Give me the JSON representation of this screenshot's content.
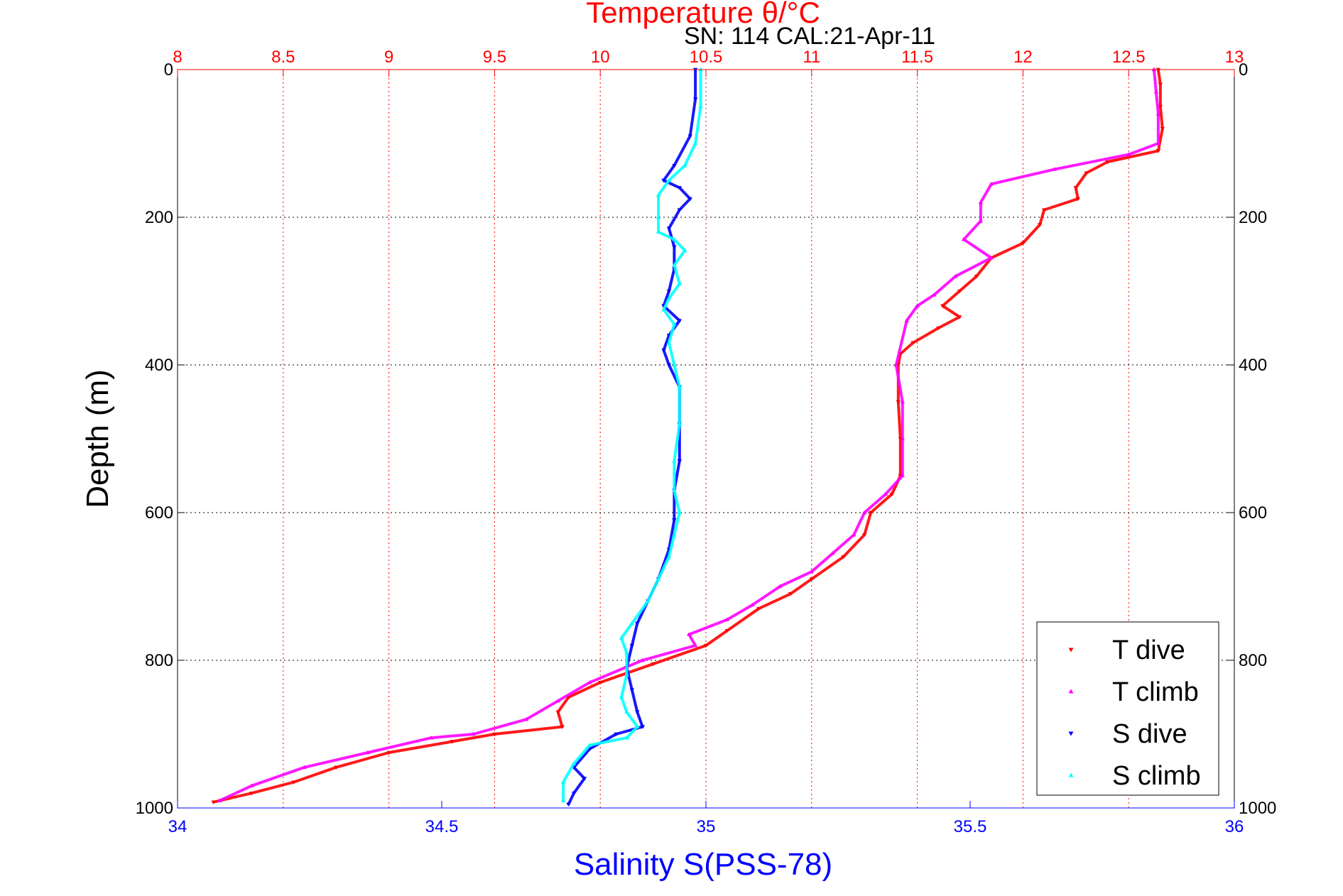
{
  "chart_data": {
    "type": "scatter",
    "title": "Temperature θ/°C",
    "subtitle": "SN: 114  CAL:21-Apr-11",
    "xlabel_bottom": "Salinity S(PSS-78)",
    "xlabel_top": "",
    "ylabel": "Depth (m)",
    "ylim": [
      0,
      1000
    ],
    "y_reversed": true,
    "xlim_salinity": [
      34,
      36
    ],
    "xlim_temperature": [
      8,
      13
    ],
    "salinity_ticks": [
      "34",
      "34.5",
      "35",
      "35.5",
      "36"
    ],
    "temperature_ticks": [
      "8",
      "8.5",
      "9",
      "9.5",
      "10",
      "10.5",
      "11",
      "11.5",
      "12",
      "12.5",
      "13"
    ],
    "depth_ticks": [
      "0",
      "200",
      "400",
      "600",
      "800",
      "1000"
    ],
    "grid": true,
    "legend_position": "bottom-right",
    "colors": {
      "temperature_axis": "#ff0000",
      "salinity_axis": "#0000ff",
      "t_dive": "#ff0000",
      "t_climb": "#ff00ff",
      "s_dive": "#0000ff",
      "s_climb": "#00ffff"
    },
    "series": [
      {
        "name": "T dive",
        "axis": "temperature",
        "marker": "down-triangle",
        "points": [
          [
            12.64,
            0
          ],
          [
            12.65,
            20
          ],
          [
            12.65,
            50
          ],
          [
            12.66,
            80
          ],
          [
            12.64,
            110
          ],
          [
            12.4,
            125
          ],
          [
            12.3,
            140
          ],
          [
            12.25,
            160
          ],
          [
            12.26,
            175
          ],
          [
            12.1,
            190
          ],
          [
            12.08,
            210
          ],
          [
            12.0,
            235
          ],
          [
            11.85,
            255
          ],
          [
            11.78,
            280
          ],
          [
            11.7,
            300
          ],
          [
            11.62,
            320
          ],
          [
            11.7,
            335
          ],
          [
            11.6,
            350
          ],
          [
            11.48,
            370
          ],
          [
            11.42,
            385
          ],
          [
            11.41,
            400
          ],
          [
            11.41,
            450
          ],
          [
            11.42,
            500
          ],
          [
            11.42,
            550
          ],
          [
            11.38,
            575
          ],
          [
            11.28,
            600
          ],
          [
            11.25,
            630
          ],
          [
            11.15,
            660
          ],
          [
            11.0,
            690
          ],
          [
            10.9,
            710
          ],
          [
            10.75,
            730
          ],
          [
            10.6,
            760
          ],
          [
            10.5,
            780
          ],
          [
            10.25,
            805
          ],
          [
            10.0,
            830
          ],
          [
            9.85,
            850
          ],
          [
            9.8,
            870
          ],
          [
            9.82,
            890
          ],
          [
            9.5,
            900
          ],
          [
            9.3,
            910
          ],
          [
            9.0,
            925
          ],
          [
            8.75,
            945
          ],
          [
            8.55,
            965
          ],
          [
            8.35,
            980
          ],
          [
            8.17,
            992
          ]
        ]
      },
      {
        "name": "T climb",
        "axis": "temperature",
        "marker": "up-triangle",
        "points": [
          [
            12.62,
            0
          ],
          [
            12.63,
            30
          ],
          [
            12.64,
            60
          ],
          [
            12.64,
            100
          ],
          [
            12.5,
            115
          ],
          [
            12.15,
            135
          ],
          [
            11.85,
            155
          ],
          [
            11.8,
            180
          ],
          [
            11.8,
            205
          ],
          [
            11.72,
            230
          ],
          [
            11.85,
            255
          ],
          [
            11.68,
            280
          ],
          [
            11.58,
            305
          ],
          [
            11.5,
            320
          ],
          [
            11.45,
            340
          ],
          [
            11.4,
            400
          ],
          [
            11.43,
            450
          ],
          [
            11.43,
            500
          ],
          [
            11.43,
            550
          ],
          [
            11.35,
            575
          ],
          [
            11.25,
            600
          ],
          [
            11.2,
            630
          ],
          [
            11.1,
            655
          ],
          [
            11.0,
            680
          ],
          [
            10.85,
            700
          ],
          [
            10.72,
            725
          ],
          [
            10.6,
            745
          ],
          [
            10.42,
            765
          ],
          [
            10.45,
            780
          ],
          [
            10.2,
            800
          ],
          [
            9.95,
            830
          ],
          [
            9.8,
            855
          ],
          [
            9.65,
            880
          ],
          [
            9.4,
            900
          ],
          [
            9.2,
            905
          ],
          [
            8.9,
            925
          ],
          [
            8.6,
            945
          ],
          [
            8.35,
            970
          ],
          [
            8.2,
            990
          ]
        ]
      },
      {
        "name": "S dive",
        "axis": "salinity",
        "marker": "down-triangle",
        "points": [
          [
            34.98,
            0
          ],
          [
            34.98,
            40
          ],
          [
            34.97,
            90
          ],
          [
            34.94,
            130
          ],
          [
            34.92,
            150
          ],
          [
            34.95,
            160
          ],
          [
            34.97,
            175
          ],
          [
            34.95,
            190
          ],
          [
            34.93,
            215
          ],
          [
            34.94,
            240
          ],
          [
            34.94,
            270
          ],
          [
            34.93,
            300
          ],
          [
            34.92,
            320
          ],
          [
            34.95,
            340
          ],
          [
            34.93,
            360
          ],
          [
            34.92,
            380
          ],
          [
            34.93,
            400
          ],
          [
            34.95,
            430
          ],
          [
            34.95,
            480
          ],
          [
            34.95,
            530
          ],
          [
            34.94,
            570
          ],
          [
            34.94,
            610
          ],
          [
            34.93,
            650
          ],
          [
            34.91,
            690
          ],
          [
            34.89,
            720
          ],
          [
            34.87,
            750
          ],
          [
            34.86,
            780
          ],
          [
            34.85,
            810
          ],
          [
            34.86,
            840
          ],
          [
            34.87,
            870
          ],
          [
            34.88,
            890
          ],
          [
            34.83,
            900
          ],
          [
            34.78,
            920
          ],
          [
            34.75,
            945
          ],
          [
            34.77,
            960
          ],
          [
            34.75,
            980
          ],
          [
            34.74,
            995
          ]
        ]
      },
      {
        "name": "S climb",
        "axis": "salinity",
        "marker": "up-triangle",
        "points": [
          [
            34.99,
            0
          ],
          [
            34.99,
            50
          ],
          [
            34.98,
            100
          ],
          [
            34.96,
            130
          ],
          [
            34.93,
            150
          ],
          [
            34.91,
            170
          ],
          [
            34.91,
            200
          ],
          [
            34.91,
            220
          ],
          [
            34.94,
            230
          ],
          [
            34.96,
            245
          ],
          [
            34.94,
            265
          ],
          [
            34.95,
            290
          ],
          [
            34.93,
            310
          ],
          [
            34.92,
            325
          ],
          [
            34.94,
            345
          ],
          [
            34.93,
            370
          ],
          [
            34.94,
            400
          ],
          [
            34.95,
            430
          ],
          [
            34.95,
            480
          ],
          [
            34.94,
            530
          ],
          [
            34.94,
            570
          ],
          [
            34.95,
            600
          ],
          [
            34.94,
            630
          ],
          [
            34.93,
            660
          ],
          [
            34.91,
            690
          ],
          [
            34.89,
            720
          ],
          [
            34.86,
            750
          ],
          [
            34.84,
            770
          ],
          [
            34.85,
            790
          ],
          [
            34.85,
            820
          ],
          [
            34.84,
            850
          ],
          [
            34.85,
            870
          ],
          [
            34.87,
            890
          ],
          [
            34.85,
            905
          ],
          [
            34.78,
            915
          ],
          [
            34.75,
            940
          ],
          [
            34.73,
            965
          ],
          [
            34.73,
            990
          ]
        ]
      }
    ]
  }
}
